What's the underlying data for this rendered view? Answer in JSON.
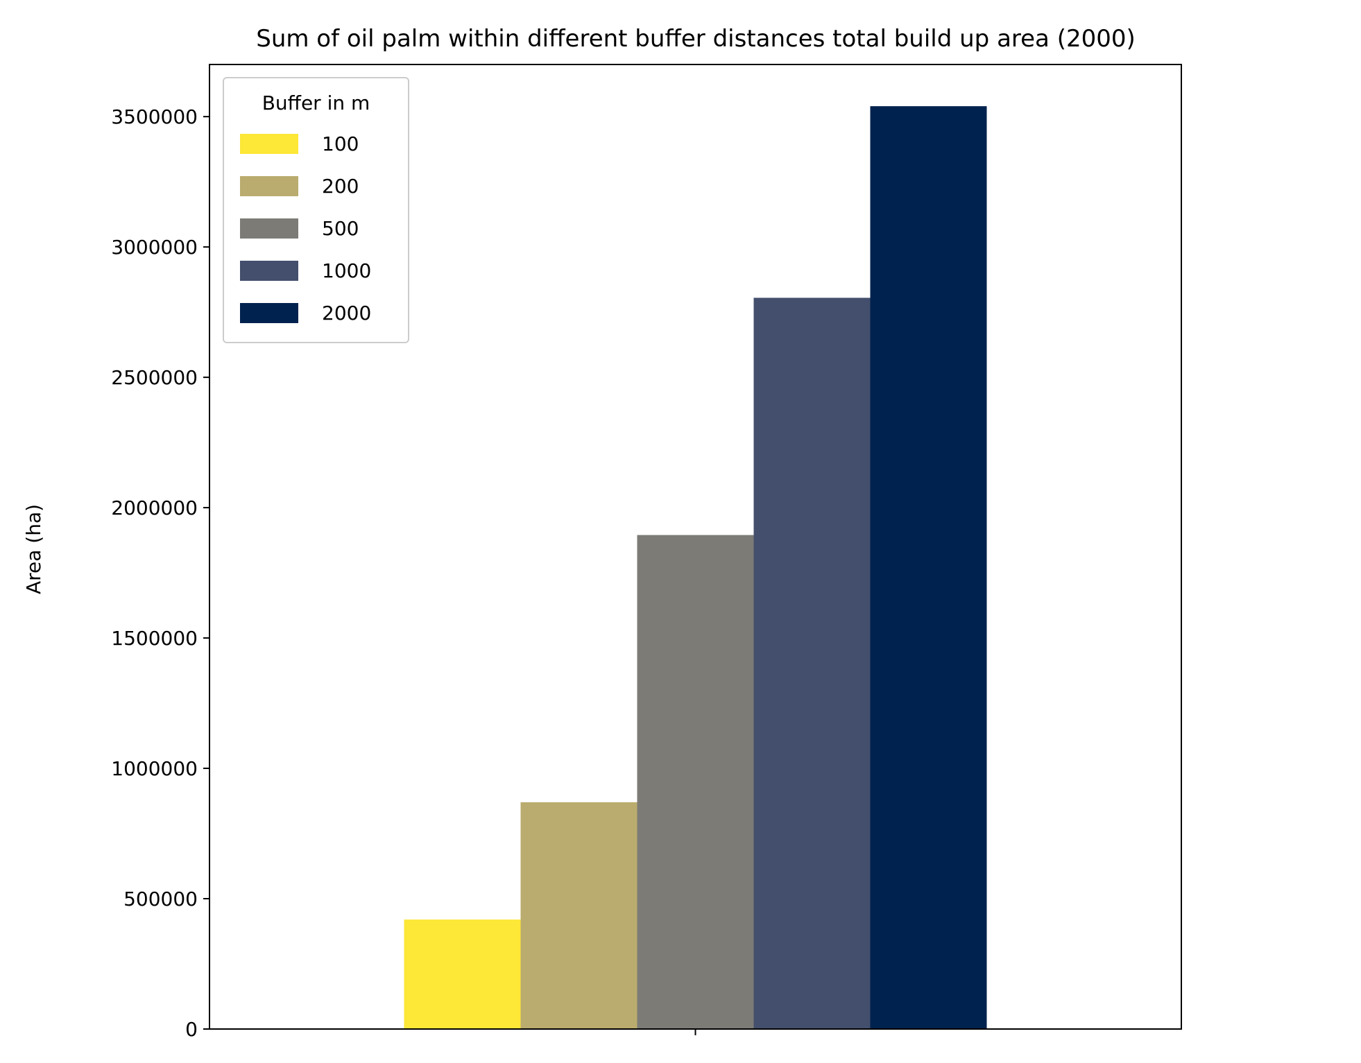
{
  "chart_data": {
    "type": "bar",
    "title": "Sum of oil palm within different buffer distances total build up area (2000)",
    "xlabel": "",
    "ylabel": "Area (ha)",
    "categories": [
      ""
    ],
    "ylim": [
      0,
      3700000
    ],
    "yticks": [
      0,
      500000,
      1000000,
      1500000,
      2000000,
      2500000,
      3000000,
      3500000
    ],
    "ytick_labels": [
      "0",
      "500000",
      "1000000",
      "1500000",
      "2000000",
      "2500000",
      "3000000",
      "3500000"
    ],
    "grid": false,
    "legend": {
      "title": "Buffer in m",
      "position": "top-left"
    },
    "series": [
      {
        "name": "100",
        "color": "#fde737",
        "values": [
          420000
        ]
      },
      {
        "name": "200",
        "color": "#baac6e",
        "values": [
          870000
        ]
      },
      {
        "name": "500",
        "color": "#7c7b76",
        "values": [
          1895000
        ]
      },
      {
        "name": "1000",
        "color": "#434f6c",
        "values": [
          2805000
        ]
      },
      {
        "name": "2000",
        "color": "#00224e",
        "values": [
          3540000
        ]
      }
    ]
  }
}
